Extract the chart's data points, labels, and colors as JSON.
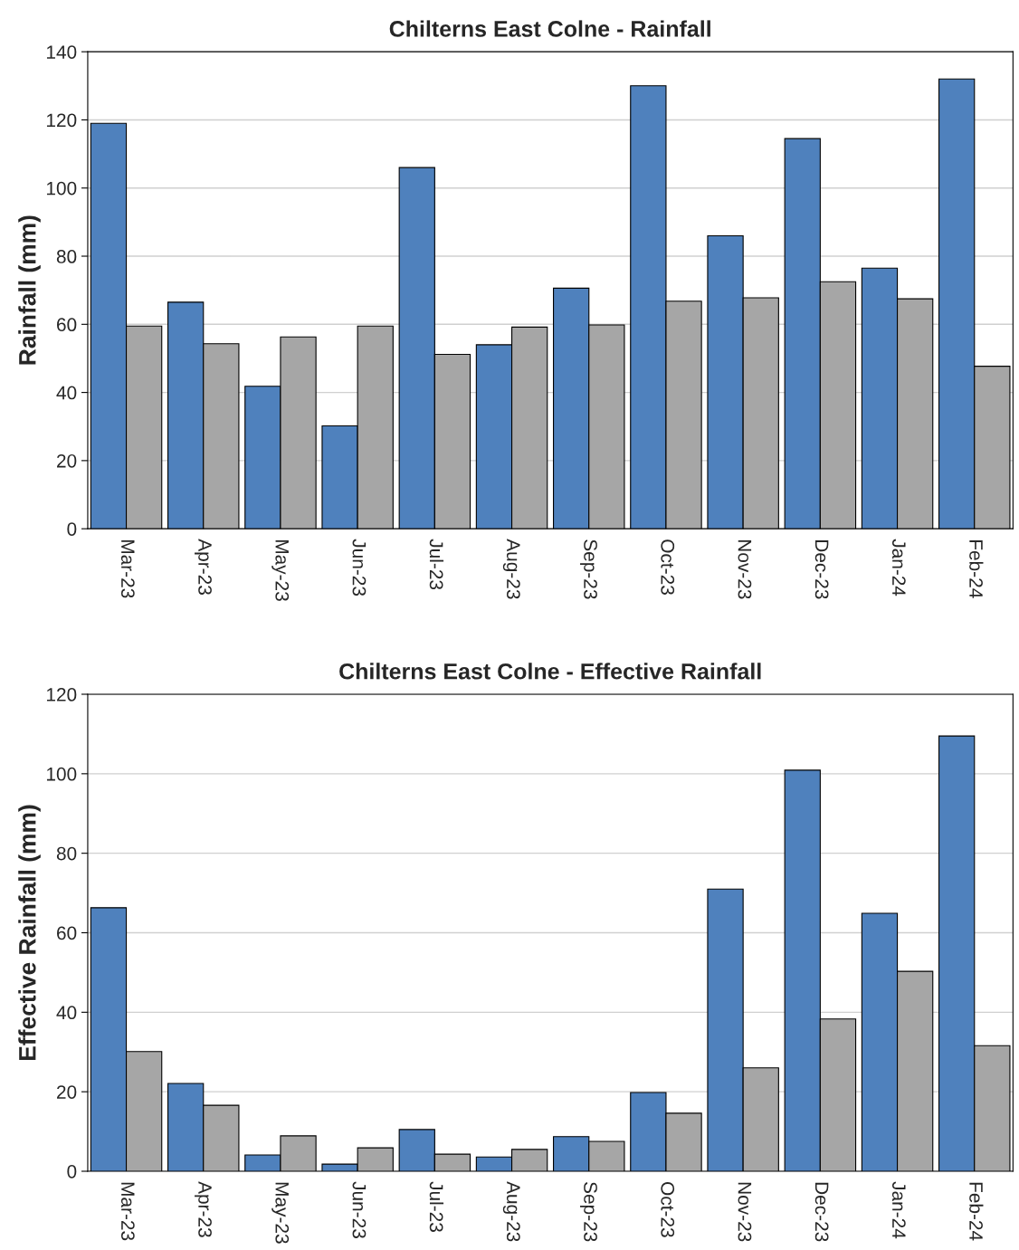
{
  "chart_data": [
    {
      "type": "bar",
      "title": "Chilterns East Colne - Rainfall",
      "ylabel": "Rainfall (mm)",
      "categories": [
        "Mar-23",
        "Apr-23",
        "May-23",
        "Jun-23",
        "Jul-23",
        "Aug-23",
        "Sep-23",
        "Oct-23",
        "Nov-23",
        "Dec-23",
        "Jan-24",
        "Feb-24"
      ],
      "series": [
        {
          "color": "#4f81bd",
          "values": [
            119,
            66.5,
            41.8,
            30.2,
            106,
            54,
            70.6,
            130,
            86,
            114.5,
            76.5,
            132
          ]
        },
        {
          "color": "#a6a6a6",
          "values": [
            59.5,
            54.3,
            56.3,
            59.5,
            51.2,
            59.2,
            59.8,
            66.8,
            67.8,
            72.5,
            67.5,
            47.7
          ]
        }
      ],
      "ylim": [
        0,
        140
      ],
      "yticks": [
        0,
        20,
        40,
        60,
        80,
        100,
        120,
        140
      ],
      "grid": "y"
    },
    {
      "type": "bar",
      "title": "Chilterns East Colne - Effective Rainfall",
      "ylabel": "Effective Rainfall (mm)",
      "categories": [
        "Mar-23",
        "Apr-23",
        "May-23",
        "Jun-23",
        "Jul-23",
        "Aug-23",
        "Sep-23",
        "Oct-23",
        "Nov-23",
        "Dec-23",
        "Jan-24",
        "Feb-24"
      ],
      "series": [
        {
          "color": "#4f81bd",
          "values": [
            66.3,
            22.1,
            4.1,
            1.8,
            10.5,
            3.6,
            8.7,
            19.8,
            71,
            100.9,
            64.9,
            109.5
          ]
        },
        {
          "color": "#a6a6a6",
          "values": [
            30.1,
            16.6,
            8.9,
            5.9,
            4.3,
            5.5,
            7.5,
            14.6,
            26,
            38.3,
            50.3,
            31.6
          ]
        }
      ],
      "ylim": [
        0,
        120
      ],
      "yticks": [
        0,
        20,
        40,
        60,
        80,
        100,
        120
      ],
      "grid": "y"
    }
  ]
}
